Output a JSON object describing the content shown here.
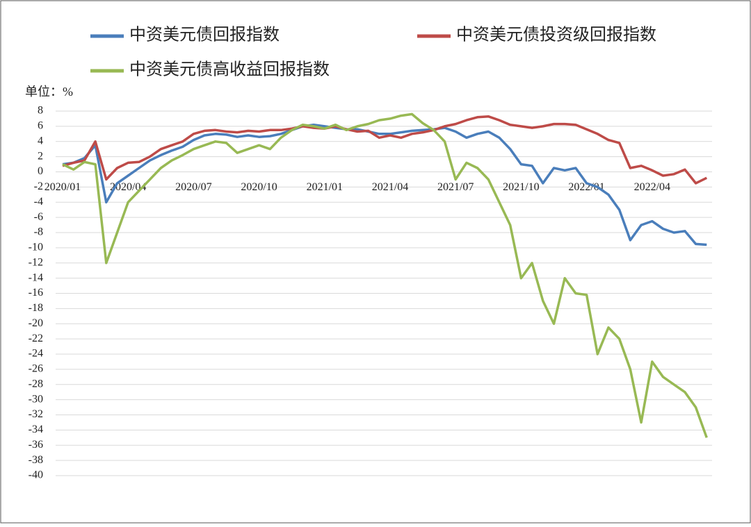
{
  "chart_data": {
    "type": "line",
    "legend_labels_note_free": null,
    "unit_label": "单位：%",
    "categories": [
      "2020/01",
      null,
      null,
      null,
      null,
      null,
      "2020/04",
      null,
      null,
      null,
      null,
      null,
      "2020/07",
      null,
      null,
      null,
      null,
      null,
      "2020/10",
      null,
      null,
      null,
      null,
      null,
      "2021/01",
      null,
      null,
      null,
      null,
      null,
      "2021/04",
      null,
      null,
      null,
      null,
      null,
      "2021/07",
      null,
      null,
      null,
      null,
      null,
      "2021/10",
      null,
      null,
      null,
      null,
      null,
      "2022/01",
      null,
      null,
      null,
      null,
      null,
      "2022/04",
      null,
      null,
      null,
      null,
      null
    ],
    "series": [
      {
        "name": "中资美元债回报指数",
        "color": "#4a7ebb",
        "values": [
          1,
          1.2,
          1.8,
          3.5,
          -4,
          -1.5,
          -0.5,
          0.5,
          1.5,
          2.2,
          2.8,
          3.3,
          4.2,
          4.8,
          5,
          4.9,
          4.6,
          4.8,
          4.6,
          4.7,
          5,
          5.5,
          6,
          6.2,
          6,
          5.8,
          5.6,
          5.6,
          5.3,
          5,
          5,
          5.2,
          5.4,
          5.5,
          5.6,
          5.8,
          5.3,
          4.5,
          5,
          5.3,
          4.5,
          3,
          1,
          0.8,
          -1.5,
          0.5,
          0.2,
          0.5,
          -1.5,
          -2,
          -3,
          -5,
          -9,
          -7,
          -6.5,
          -7.5,
          -8,
          -7.8,
          -9.5,
          -9.6
        ]
      },
      {
        "name": "中资美元债投资级回报指数",
        "color": "#be4b48",
        "values": [
          0.8,
          1.2,
          1.5,
          4,
          -1,
          0.5,
          1.2,
          1.3,
          2,
          3,
          3.5,
          4,
          5,
          5.4,
          5.5,
          5.3,
          5.2,
          5.4,
          5.3,
          5.5,
          5.5,
          5.7,
          6,
          5.8,
          5.7,
          6,
          5.6,
          5.3,
          5.4,
          4.5,
          4.8,
          4.5,
          5,
          5.2,
          5.5,
          6,
          6.3,
          6.8,
          7.2,
          7.3,
          6.8,
          6.2,
          6,
          5.8,
          6,
          6.3,
          6.3,
          6.2,
          5.6,
          5,
          4.2,
          3.8,
          0.5,
          0.8,
          0.2,
          -0.5,
          -0.3,
          0.3,
          -1.5,
          -0.8
        ]
      },
      {
        "name": "中资美元债高收益回报指数",
        "color": "#98b954",
        "values": [
          1,
          0.3,
          1.3,
          1,
          -12,
          -8,
          -4,
          -2.5,
          -1,
          0.5,
          1.5,
          2.2,
          3,
          3.5,
          4,
          3.8,
          2.5,
          3,
          3.5,
          3,
          4.5,
          5.5,
          6.2,
          6,
          5.7,
          6.2,
          5.5,
          6,
          6.3,
          6.8,
          7,
          7.4,
          7.6,
          6.4,
          5.5,
          4,
          -1,
          1.2,
          0.5,
          -1,
          -4,
          -7,
          -14,
          -12,
          -17,
          -20,
          -14,
          -16,
          -16.2,
          -24,
          -20.5,
          -22,
          -26,
          -33,
          -25,
          -27,
          -28,
          -29,
          -31,
          -35
        ]
      }
    ],
    "ylim": [
      -40,
      8
    ],
    "yticks": [
      -40,
      -38,
      -36,
      -34,
      -32,
      -30,
      -28,
      -26,
      -24,
      -22,
      -20,
      -18,
      -16,
      -14,
      -12,
      -10,
      -8,
      -6,
      -4,
      -2,
      0,
      2,
      4,
      6,
      8
    ],
    "grid": true
  }
}
